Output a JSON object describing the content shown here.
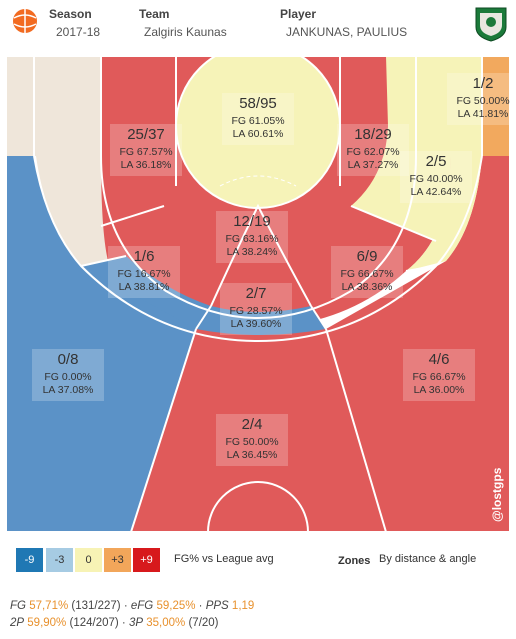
{
  "header": {
    "season_label": "Season",
    "season_value": "2017-18",
    "team_label": "Team",
    "team_value": "Zalgiris Kaunas",
    "player_label": "Player",
    "player_value": "JANKUNAS, PAULIUS"
  },
  "watermark": "@lostgps",
  "colors": {
    "blue": "#5b92c7",
    "lightblue": "#a9c6e0",
    "cream": "#f6f3b8",
    "orange": "#f2a95e",
    "red": "#e05a5a"
  },
  "chart_data": {
    "type": "heatmap",
    "zones": [
      {
        "id": "restricted",
        "made_att": "58/95",
        "fg": "FG 61.05%",
        "la": "LA 60.61%",
        "tier": "0"
      },
      {
        "id": "paint-left",
        "made_att": "25/37",
        "fg": "FG 67.57%",
        "la": "LA 36.18%",
        "tier": "+9"
      },
      {
        "id": "paint-right",
        "made_att": "18/29",
        "fg": "FG 62.07%",
        "la": "LA 37.27%",
        "tier": "+9"
      },
      {
        "id": "paint-center",
        "made_att": "12/19",
        "fg": "FG 63.16%",
        "la": "LA 38.24%",
        "tier": "+9"
      },
      {
        "id": "mid-left",
        "made_att": "1/6",
        "fg": "FG 16.67%",
        "la": "LA 38.81%",
        "tier": "-9"
      },
      {
        "id": "mid-right",
        "made_att": "6/9",
        "fg": "FG 66.67%",
        "la": "LA 38.36%",
        "tier": "+9"
      },
      {
        "id": "mid-center",
        "made_att": "2/7",
        "fg": "FG 28.57%",
        "la": "LA 39.60%",
        "tier": "-9"
      },
      {
        "id": "baseline-right",
        "made_att": "2/5",
        "fg": "FG 40.00%",
        "la": "LA 42.64%",
        "tier": "0"
      },
      {
        "id": "corner3-right",
        "made_att": "1/2",
        "fg": "FG 50.00%",
        "la": "LA 41.81%",
        "tier": "+9"
      },
      {
        "id": "three-left",
        "made_att": "0/8",
        "fg": "FG 0.00%",
        "la": "LA 37.08%",
        "tier": "-9"
      },
      {
        "id": "three-right",
        "made_att": "4/6",
        "fg": "FG 66.67%",
        "la": "LA 36.00%",
        "tier": "+9"
      },
      {
        "id": "three-center",
        "made_att": "2/4",
        "fg": "FG 50.00%",
        "la": "LA 36.45%",
        "tier": "+9"
      }
    ]
  },
  "legend": {
    "items": [
      {
        "label": "-9",
        "color": "#1f78b4",
        "text": "#ffffff"
      },
      {
        "label": "-3",
        "color": "#a6cbe3",
        "text": "#333333"
      },
      {
        "label": "0",
        "color": "#f7f3b5",
        "text": "#333333"
      },
      {
        "label": "+3",
        "color": "#f2a65a",
        "text": "#333333"
      },
      {
        "label": "+9",
        "color": "#d7191c",
        "text": "#ffffff"
      }
    ],
    "caption": "FG% vs League avg",
    "zones_label": "Zones",
    "zones_value": "By distance & angle"
  },
  "summary": {
    "fg_label": "FG",
    "fg_pct": "57,71%",
    "fg_count": "(131/227)",
    "efg_label": "eFG",
    "efg_pct": "59,25%",
    "pps_label": "PPS",
    "pps_value": "1,19",
    "p2_label": "2P",
    "p2_pct": "59,90%",
    "p2_count": "(124/207)",
    "p3_label": "3P",
    "p3_pct": "35,00%",
    "p3_count": "(7/20)"
  }
}
